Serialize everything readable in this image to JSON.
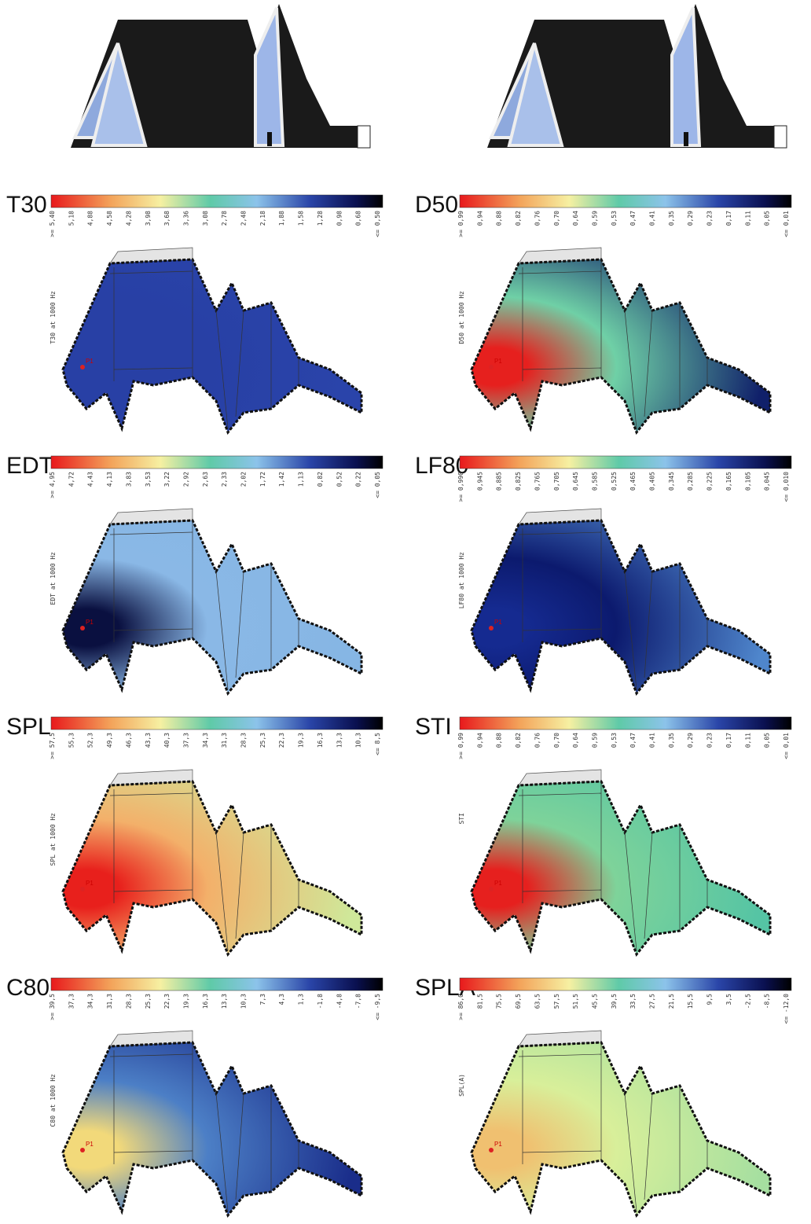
{
  "source_label": "P1",
  "panels": [
    {
      "title": "T30",
      "caption": "T30 at 1000 Hz",
      "scale_labels": [
        ">= 5,40",
        "5,18",
        "4,88",
        "4,58",
        "4,28",
        "3,98",
        "3,68",
        "3,36",
        "3,08",
        "2,78",
        "2,48",
        "2,18",
        "1,88",
        "1,58",
        "1,28",
        "0,98",
        "0,68",
        "<= 0,50"
      ]
    },
    {
      "title": "D50",
      "caption": "D50 at 1000 Hz",
      "scale_labels": [
        ">= 0,99",
        "0,94",
        "0,88",
        "0,82",
        "0,76",
        "0,70",
        "0,64",
        "0,59",
        "0,53",
        "0,47",
        "0,41",
        "0,35",
        "0,29",
        "0,23",
        "0,17",
        "0,11",
        "0,05",
        "<= 0,01"
      ]
    },
    {
      "title": "EDT",
      "caption": "EDT at 1000 Hz",
      "scale_labels": [
        ">= 4,95",
        "4,72",
        "4,43",
        "4,13",
        "3,83",
        "3,53",
        "3,22",
        "2,92",
        "2,63",
        "2,33",
        "2,02",
        "1,72",
        "1,42",
        "1,13",
        "0,82",
        "0,52",
        "0,22",
        "<= 0,05"
      ]
    },
    {
      "title": "LF80",
      "caption": "LF80 at 1000 Hz",
      "scale_labels": [
        ">= 0,990",
        "0,945",
        "0,885",
        "0,825",
        "0,765",
        "0,705",
        "0,645",
        "0,585",
        "0,525",
        "0,465",
        "0,405",
        "0,345",
        "0,285",
        "0,225",
        "0,165",
        "0,105",
        "0,045",
        "<= 0,010"
      ]
    },
    {
      "title": "SPL",
      "caption": "SPL at 1000 Hz",
      "scale_labels": [
        ">= 57,5",
        "55,3",
        "52,3",
        "49,3",
        "46,3",
        "43,3",
        "40,3",
        "37,3",
        "34,3",
        "31,3",
        "28,3",
        "25,3",
        "22,3",
        "19,3",
        "16,3",
        "13,3",
        "10,3",
        "<= 8,5"
      ]
    },
    {
      "title": "STI",
      "caption": "STI",
      "scale_labels": [
        ">= 0,99",
        "0,94",
        "0,88",
        "0,82",
        "0,76",
        "0,70",
        "0,64",
        "0,59",
        "0,53",
        "0,47",
        "0,41",
        "0,35",
        "0,29",
        "0,23",
        "0,17",
        "0,11",
        "0,05",
        "<= 0,01"
      ]
    },
    {
      "title": "C80",
      "caption": "C80 at 1000 Hz",
      "scale_labels": [
        ">= 39,5",
        "37,3",
        "34,3",
        "31,3",
        "28,3",
        "25,3",
        "22,3",
        "19,3",
        "16,3",
        "13,3",
        "10,3",
        "7,3",
        "4,3",
        "1,3",
        "-1,8",
        "-4,8",
        "-7,8",
        "<= -9,5"
      ]
    },
    {
      "title": "SPLA",
      "caption": "SPL(A)",
      "scale_labels": [
        ">= 86,0",
        "81,5",
        "75,5",
        "69,5",
        "63,5",
        "57,5",
        "51,5",
        "45,5",
        "39,5",
        "33,5",
        "27,5",
        "21,5",
        "15,5",
        "9,5",
        "3,5",
        "-2,5",
        "-8,5",
        "<= -12,0"
      ]
    }
  ]
}
